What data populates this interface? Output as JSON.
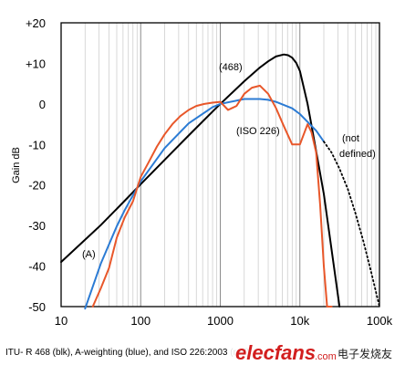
{
  "chart_data": {
    "type": "line",
    "xscale": "log",
    "xlim": [
      10,
      100000
    ],
    "ylim": [
      -50,
      20
    ],
    "grid": true,
    "xlabel": "",
    "ylabel": "Gain dB",
    "x_ticks": [
      "10",
      "100",
      "1000",
      "10k",
      "100k"
    ],
    "y_ticks": [
      "+20",
      "+10",
      "0",
      "-10",
      "-20",
      "-30",
      "-40",
      "-50"
    ],
    "annotations": [
      "(468)",
      "(ISO 226)",
      "(A)",
      "(not",
      "defined)"
    ],
    "caption": "ITU- R 468 (blk), A-weighting (blue), and ISO 226:2003 (red)",
    "series": [
      {
        "name": "ITU-R 468",
        "color": "#000000",
        "x": [
          10,
          31.5,
          63,
          100,
          200,
          400,
          800,
          1000,
          2000,
          3150,
          4000,
          5000,
          6300,
          7100,
          8000,
          9000,
          10000,
          12500,
          14000,
          16000,
          20000,
          31500
        ],
        "y": [
          -39,
          -29.9,
          -23.9,
          -19.8,
          -13.8,
          -7.8,
          -1.9,
          0,
          5.6,
          9.0,
          10.5,
          11.7,
          12.2,
          12.0,
          11.4,
          10.1,
          8.1,
          0,
          -5.3,
          -11.7,
          -22.2,
          -50
        ]
      },
      {
        "name": "A-weighting",
        "color": "#2b7bd4",
        "x": [
          20,
          31.5,
          50,
          63,
          100,
          200,
          400,
          800,
          1000,
          2000,
          3150,
          4000,
          5000,
          8000,
          10000,
          16000,
          20000
        ],
        "y": [
          -50.5,
          -39.4,
          -30.2,
          -26.2,
          -19.1,
          -10.9,
          -4.8,
          -0.8,
          0,
          1.2,
          1.2,
          1.0,
          0.5,
          -1.1,
          -2.5,
          -6.6,
          -9.3
        ]
      },
      {
        "name": "ISO 226:2003",
        "color": "#e8572a",
        "x": [
          25,
          31.5,
          40,
          50,
          63,
          80,
          100,
          125,
          160,
          200,
          250,
          315,
          400,
          500,
          630,
          800,
          1000,
          1250,
          1600,
          2000,
          2500,
          3150,
          4000,
          5000,
          6300,
          8000,
          10000,
          12500,
          14000,
          16000,
          18000,
          20000,
          22000,
          25000
        ],
        "y": [
          -50,
          -45.5,
          -40.5,
          -33,
          -28,
          -24,
          -18,
          -14.5,
          -10.5,
          -7.5,
          -5,
          -3,
          -1.5,
          -0.5,
          0,
          0.3,
          0.5,
          -1.5,
          -0.5,
          2.5,
          4,
          4.5,
          2.5,
          -1,
          -5.5,
          -10,
          -10,
          -5,
          -7,
          -12,
          -25,
          -40,
          -50,
          -50
        ]
      },
      {
        "name": "not defined",
        "color": "#000000",
        "dash": "dotted",
        "x": [
          20000,
          25000,
          31500,
          40000,
          50000,
          63000,
          80000,
          100000
        ],
        "y": [
          -9.3,
          -12,
          -16,
          -21,
          -27,
          -34,
          -42,
          -50
        ]
      }
    ]
  },
  "watermark": {
    "brand": "elecfans",
    "domain": ".com",
    "sub": "电子发烧友"
  }
}
